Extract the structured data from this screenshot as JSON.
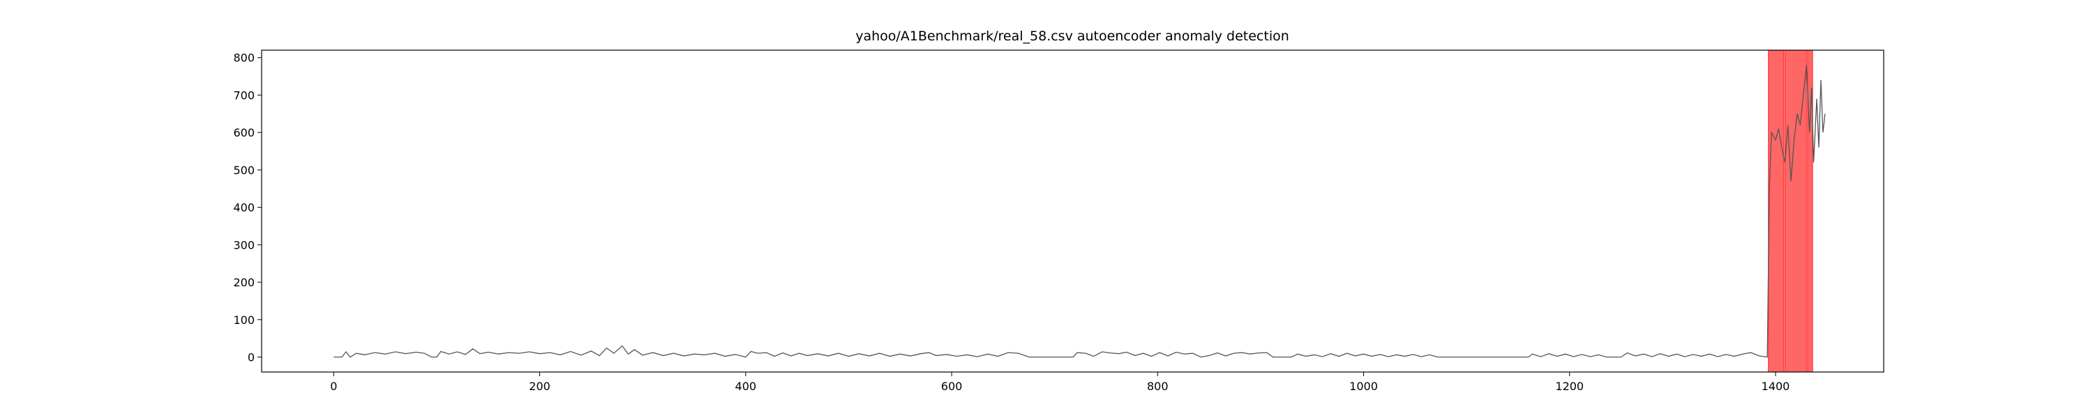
{
  "chart_data": {
    "type": "line",
    "title": "yahoo/A1Benchmark/real_58.csv autoencoder anomaly detection",
    "xlabel": "",
    "ylabel": "",
    "xlim": [
      -70,
      1505
    ],
    "ylim": [
      -40,
      820
    ],
    "xticks": [
      0,
      200,
      400,
      600,
      800,
      1000,
      1200,
      1400
    ],
    "yticks": [
      0,
      100,
      200,
      300,
      400,
      500,
      600,
      700,
      800
    ],
    "grid": false,
    "line_color": "#555555",
    "anomaly_color": "#ff0000",
    "series": [
      {
        "points": [
          [
            0,
            0
          ],
          [
            8,
            0
          ],
          [
            12,
            14
          ],
          [
            16,
            0
          ],
          [
            22,
            10
          ],
          [
            30,
            6
          ],
          [
            40,
            12
          ],
          [
            50,
            8
          ],
          [
            60,
            14
          ],
          [
            70,
            9
          ],
          [
            80,
            13
          ],
          [
            88,
            10
          ],
          [
            95,
            0
          ],
          [
            100,
            0
          ],
          [
            104,
            15
          ],
          [
            112,
            8
          ],
          [
            120,
            14
          ],
          [
            128,
            7
          ],
          [
            135,
            22
          ],
          [
            142,
            9
          ],
          [
            150,
            13
          ],
          [
            160,
            8
          ],
          [
            170,
            12
          ],
          [
            180,
            10
          ],
          [
            190,
            14
          ],
          [
            200,
            9
          ],
          [
            210,
            12
          ],
          [
            220,
            6
          ],
          [
            230,
            15
          ],
          [
            240,
            5
          ],
          [
            250,
            16
          ],
          [
            258,
            4
          ],
          [
            265,
            24
          ],
          [
            272,
            10
          ],
          [
            280,
            30
          ],
          [
            286,
            8
          ],
          [
            292,
            20
          ],
          [
            300,
            5
          ],
          [
            310,
            12
          ],
          [
            320,
            4
          ],
          [
            330,
            10
          ],
          [
            340,
            3
          ],
          [
            350,
            8
          ],
          [
            360,
            6
          ],
          [
            370,
            10
          ],
          [
            380,
            2
          ],
          [
            390,
            7
          ],
          [
            400,
            0
          ],
          [
            405,
            15
          ],
          [
            412,
            10
          ],
          [
            420,
            12
          ],
          [
            428,
            2
          ],
          [
            436,
            11
          ],
          [
            444,
            3
          ],
          [
            452,
            10
          ],
          [
            460,
            4
          ],
          [
            470,
            9
          ],
          [
            480,
            3
          ],
          [
            490,
            10
          ],
          [
            500,
            2
          ],
          [
            510,
            9
          ],
          [
            520,
            3
          ],
          [
            530,
            10
          ],
          [
            540,
            2
          ],
          [
            550,
            8
          ],
          [
            560,
            3
          ],
          [
            570,
            9
          ],
          [
            578,
            12
          ],
          [
            585,
            4
          ],
          [
            595,
            7
          ],
          [
            605,
            2
          ],
          [
            615,
            6
          ],
          [
            625,
            1
          ],
          [
            635,
            8
          ],
          [
            645,
            2
          ],
          [
            655,
            12
          ],
          [
            665,
            10
          ],
          [
            675,
            0
          ],
          [
            718,
            0
          ],
          [
            722,
            12
          ],
          [
            730,
            10
          ],
          [
            738,
            2
          ],
          [
            746,
            14
          ],
          [
            754,
            11
          ],
          [
            762,
            9
          ],
          [
            770,
            13
          ],
          [
            778,
            4
          ],
          [
            786,
            10
          ],
          [
            794,
            2
          ],
          [
            802,
            12
          ],
          [
            810,
            3
          ],
          [
            818,
            13
          ],
          [
            826,
            8
          ],
          [
            834,
            10
          ],
          [
            842,
            0
          ],
          [
            850,
            4
          ],
          [
            858,
            11
          ],
          [
            866,
            3
          ],
          [
            874,
            10
          ],
          [
            882,
            12
          ],
          [
            890,
            8
          ],
          [
            898,
            11
          ],
          [
            906,
            12
          ],
          [
            912,
            0
          ],
          [
            930,
            0
          ],
          [
            936,
            8
          ],
          [
            944,
            2
          ],
          [
            952,
            6
          ],
          [
            960,
            1
          ],
          [
            968,
            9
          ],
          [
            976,
            2
          ],
          [
            984,
            10
          ],
          [
            992,
            3
          ],
          [
            1000,
            8
          ],
          [
            1008,
            2
          ],
          [
            1016,
            7
          ],
          [
            1024,
            1
          ],
          [
            1032,
            6
          ],
          [
            1040,
            2
          ],
          [
            1048,
            7
          ],
          [
            1056,
            1
          ],
          [
            1064,
            6
          ],
          [
            1072,
            0
          ],
          [
            1160,
            0
          ],
          [
            1164,
            8
          ],
          [
            1172,
            1
          ],
          [
            1180,
            9
          ],
          [
            1188,
            2
          ],
          [
            1196,
            8
          ],
          [
            1204,
            1
          ],
          [
            1212,
            7
          ],
          [
            1220,
            1
          ],
          [
            1228,
            6
          ],
          [
            1236,
            0
          ],
          [
            1250,
            0
          ],
          [
            1256,
            11
          ],
          [
            1264,
            3
          ],
          [
            1272,
            8
          ],
          [
            1280,
            1
          ],
          [
            1288,
            9
          ],
          [
            1296,
            2
          ],
          [
            1304,
            8
          ],
          [
            1312,
            1
          ],
          [
            1320,
            7
          ],
          [
            1328,
            2
          ],
          [
            1336,
            8
          ],
          [
            1344,
            1
          ],
          [
            1352,
            7
          ],
          [
            1360,
            2
          ],
          [
            1368,
            8
          ],
          [
            1376,
            12
          ],
          [
            1384,
            3
          ],
          [
            1392,
            0
          ],
          [
            1394,
            450
          ],
          [
            1396,
            600
          ],
          [
            1400,
            580
          ],
          [
            1403,
            610
          ],
          [
            1406,
            560
          ],
          [
            1409,
            520
          ],
          [
            1412,
            620
          ],
          [
            1415,
            470
          ],
          [
            1418,
            580
          ],
          [
            1421,
            650
          ],
          [
            1424,
            620
          ],
          [
            1427,
            700
          ],
          [
            1430,
            780
          ],
          [
            1433,
            600
          ],
          [
            1435,
            720
          ],
          [
            1437,
            520
          ],
          [
            1440,
            690
          ],
          [
            1442,
            560
          ],
          [
            1444,
            740
          ],
          [
            1446,
            600
          ],
          [
            1448,
            650
          ]
        ]
      }
    ],
    "anomaly_spans": [
      {
        "x_start": 1393,
        "x_end": 1408
      },
      {
        "x_start": 1409,
        "x_end": 1430
      },
      {
        "x_start": 1431,
        "x_end": 1436
      }
    ]
  }
}
